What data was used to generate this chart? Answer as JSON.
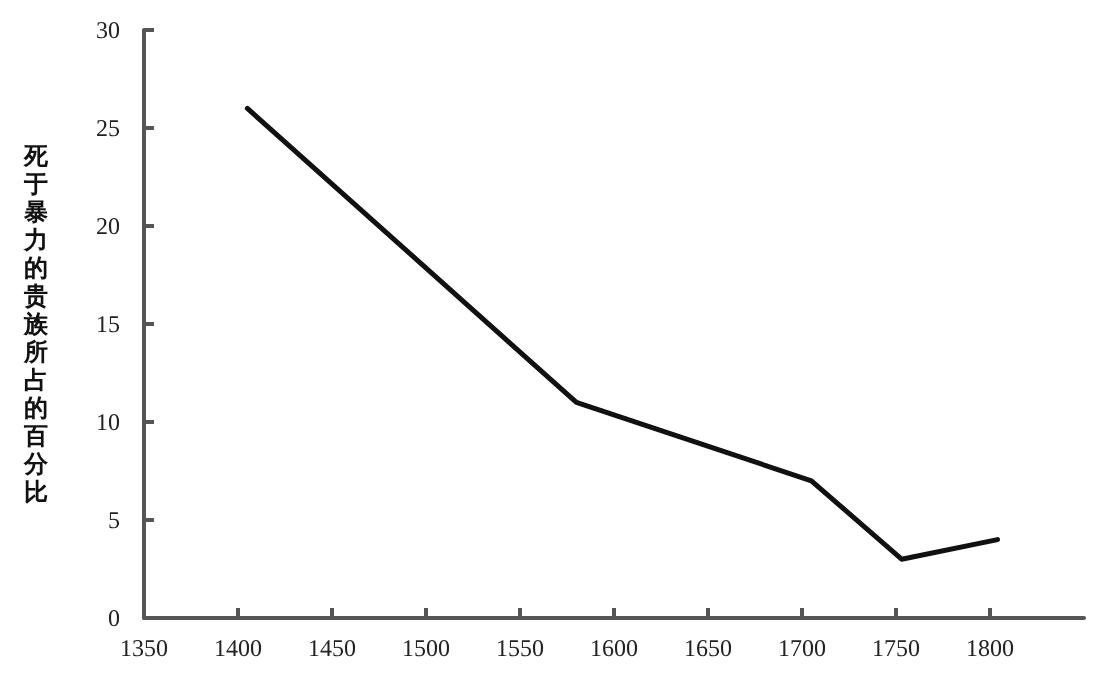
{
  "chart_data": {
    "type": "line",
    "ylabel": "死于暴力的贵族所占的百分比",
    "x": [
      1405,
      1580,
      1705,
      1753,
      1804
    ],
    "series": [
      {
        "color": "#111111",
        "values": [
          26,
          11,
          7,
          3,
          4
        ]
      }
    ],
    "xlim": [
      1350,
      1850
    ],
    "xticks": [
      1350,
      1400,
      1450,
      1500,
      1550,
      1600,
      1650,
      1700,
      1750,
      1800
    ],
    "ylim": [
      0,
      30
    ],
    "yticks": [
      0,
      5,
      10,
      15,
      20,
      25,
      30
    ],
    "marker": "none",
    "line_style": "solid"
  }
}
